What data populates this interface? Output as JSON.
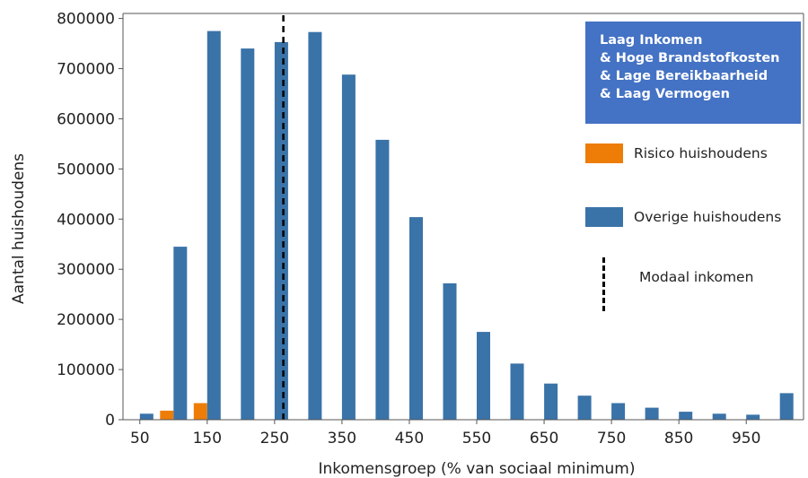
{
  "chart_data": {
    "type": "bar",
    "xlabel": "Inkomensgroep (% van sociaal minimum)",
    "ylabel": "Aantal huishoudens",
    "ylim": [
      0,
      810000
    ],
    "yticks": [
      0,
      100000,
      200000,
      300000,
      400000,
      500000,
      600000,
      700000,
      800000
    ],
    "xticks": [
      50,
      150,
      250,
      350,
      450,
      550,
      650,
      750,
      850,
      950
    ],
    "xlim": [
      25,
      1035
    ],
    "bar_group_width": 50,
    "categories": [
      50,
      100,
      150,
      200,
      250,
      300,
      350,
      400,
      450,
      500,
      550,
      600,
      650,
      700,
      750,
      800,
      850,
      900,
      950,
      1000
    ],
    "series": [
      {
        "name": "Risico huishoudens",
        "color": "#ed7d07",
        "values": [
          0,
          18000,
          33000,
          0,
          0,
          0,
          0,
          0,
          0,
          0,
          0,
          0,
          0,
          0,
          0,
          0,
          0,
          0,
          0,
          0
        ]
      },
      {
        "name": "Overige huishoudens",
        "color": "#3a73a8",
        "values": [
          12000,
          345000,
          775000,
          740000,
          753000,
          773000,
          688000,
          558000,
          404000,
          272000,
          175000,
          112000,
          72000,
          48000,
          33000,
          24000,
          16000,
          12000,
          10000,
          53000
        ]
      }
    ],
    "modaal_inkomen": 263,
    "grid": false,
    "legend_placement": "right"
  },
  "legend": {
    "condition_lines": [
      "Laag Inkomen",
      "& Hoge Brandstofkosten",
      "& Lage Bereikbaarheid",
      "& Laag Vermogen"
    ],
    "condition_color": "#4472c4",
    "risk_label": "Risico huishoudens",
    "other_label": "Overige huishoudens",
    "modal_label": "Modaal inkomen"
  }
}
